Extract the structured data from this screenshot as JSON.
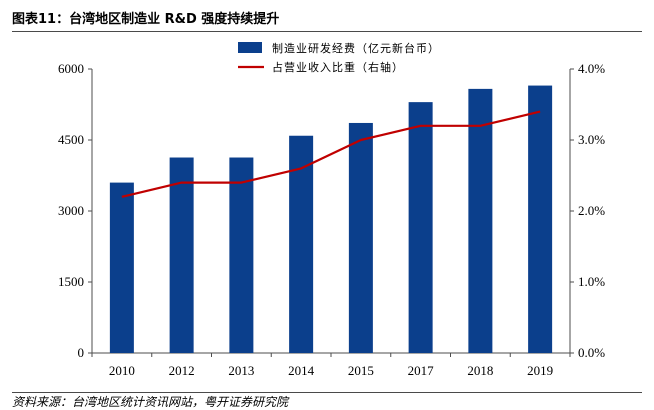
{
  "figure": {
    "title": "图表11：台湾地区制造业 R&D 强度持续提升",
    "source": "资料来源：台湾地区统计资讯网站，粤开证券研究院"
  },
  "chart_data": {
    "type": "bar",
    "categories": [
      "2010",
      "2012",
      "2013",
      "2014",
      "2015",
      "2017",
      "2018",
      "2019"
    ],
    "series": [
      {
        "name": "制造业研发经费（亿元新台币）",
        "type": "bar",
        "axis": "left",
        "color": "#0b3f8c",
        "values": [
          3600,
          4130,
          4130,
          4590,
          4860,
          5300,
          5580,
          5650
        ]
      },
      {
        "name": "占营业收入比重（右轴）",
        "type": "line",
        "axis": "right",
        "color": "#c00000",
        "values": [
          2.2,
          2.4,
          2.4,
          2.6,
          3.0,
          3.2,
          3.2,
          3.4
        ]
      }
    ],
    "ylim": [
      0,
      6000
    ],
    "yticks": [
      "0",
      "1500",
      "3000",
      "4500",
      "6000"
    ],
    "y2lim": [
      0,
      4.0
    ],
    "y2ticks": [
      "0.0%",
      "1.0%",
      "2.0%",
      "3.0%",
      "4.0%"
    ],
    "legend_position": "top-center",
    "grid": false
  }
}
